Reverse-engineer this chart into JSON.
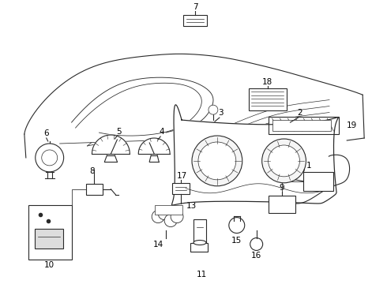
{
  "background_color": "#ffffff",
  "line_color": "#2a2a2a",
  "text_color": "#000000",
  "fig_width": 4.9,
  "fig_height": 3.6,
  "dpi": 100,
  "label_fontsize": 7.5
}
